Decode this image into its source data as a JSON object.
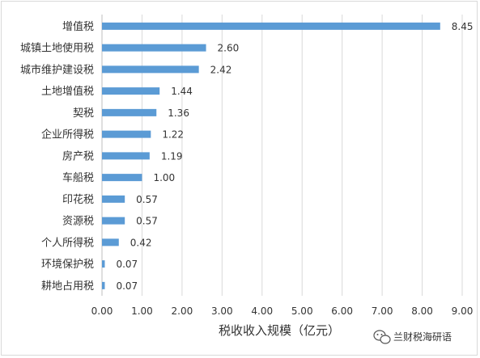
{
  "chart_data": {
    "type": "bar",
    "orientation": "horizontal",
    "categories": [
      "增值税",
      "城镇土地使用税",
      "城市维护建设税",
      "土地增值税",
      "契税",
      "企业所得税",
      "房产税",
      "车船税",
      "印花税",
      "资源税",
      "个人所得税",
      "环境保护税",
      "耕地占用税"
    ],
    "values": [
      8.45,
      2.6,
      2.42,
      1.44,
      1.36,
      1.22,
      1.19,
      1.0,
      0.57,
      0.57,
      0.42,
      0.07,
      0.07
    ],
    "value_labels": [
      "8.45",
      "2.60",
      "2.42",
      "1.44",
      "1.36",
      "1.22",
      "1.19",
      "1.00",
      "0.57",
      "0.57",
      "0.42",
      "0.07",
      "0.07"
    ],
    "title": "",
    "xlabel": "税收收入规模（亿元）",
    "ylabel": "",
    "xlim": [
      0,
      9
    ],
    "x_ticks": [
      "0.00",
      "1.00",
      "2.00",
      "3.00",
      "4.00",
      "5.00",
      "6.00",
      "7.00",
      "8.00",
      "9.00"
    ],
    "grid": "vertical",
    "bar_color": "#5b9bd5",
    "legend": "none"
  },
  "watermark": {
    "text": "兰财税海研语",
    "icon": "wechat-icon"
  }
}
